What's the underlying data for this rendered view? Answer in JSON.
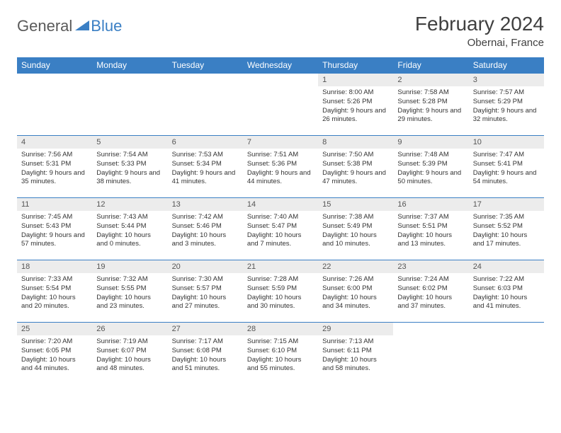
{
  "logo": {
    "general": "General",
    "blue": "Blue"
  },
  "title": "February 2024",
  "location": "Obernai, France",
  "colors": {
    "header_bg": "#3a7fc4",
    "header_text": "#ffffff",
    "daynum_bg": "#ececec",
    "border": "#3a7fc4",
    "body_text": "#333333"
  },
  "columns": [
    "Sunday",
    "Monday",
    "Tuesday",
    "Wednesday",
    "Thursday",
    "Friday",
    "Saturday"
  ],
  "weeks": [
    [
      null,
      null,
      null,
      null,
      {
        "n": "1",
        "sunrise": "8:00 AM",
        "sunset": "5:26 PM",
        "dl": "9 hours and 26 minutes."
      },
      {
        "n": "2",
        "sunrise": "7:58 AM",
        "sunset": "5:28 PM",
        "dl": "9 hours and 29 minutes."
      },
      {
        "n": "3",
        "sunrise": "7:57 AM",
        "sunset": "5:29 PM",
        "dl": "9 hours and 32 minutes."
      }
    ],
    [
      {
        "n": "4",
        "sunrise": "7:56 AM",
        "sunset": "5:31 PM",
        "dl": "9 hours and 35 minutes."
      },
      {
        "n": "5",
        "sunrise": "7:54 AM",
        "sunset": "5:33 PM",
        "dl": "9 hours and 38 minutes."
      },
      {
        "n": "6",
        "sunrise": "7:53 AM",
        "sunset": "5:34 PM",
        "dl": "9 hours and 41 minutes."
      },
      {
        "n": "7",
        "sunrise": "7:51 AM",
        "sunset": "5:36 PM",
        "dl": "9 hours and 44 minutes."
      },
      {
        "n": "8",
        "sunrise": "7:50 AM",
        "sunset": "5:38 PM",
        "dl": "9 hours and 47 minutes."
      },
      {
        "n": "9",
        "sunrise": "7:48 AM",
        "sunset": "5:39 PM",
        "dl": "9 hours and 50 minutes."
      },
      {
        "n": "10",
        "sunrise": "7:47 AM",
        "sunset": "5:41 PM",
        "dl": "9 hours and 54 minutes."
      }
    ],
    [
      {
        "n": "11",
        "sunrise": "7:45 AM",
        "sunset": "5:43 PM",
        "dl": "9 hours and 57 minutes."
      },
      {
        "n": "12",
        "sunrise": "7:43 AM",
        "sunset": "5:44 PM",
        "dl": "10 hours and 0 minutes."
      },
      {
        "n": "13",
        "sunrise": "7:42 AM",
        "sunset": "5:46 PM",
        "dl": "10 hours and 3 minutes."
      },
      {
        "n": "14",
        "sunrise": "7:40 AM",
        "sunset": "5:47 PM",
        "dl": "10 hours and 7 minutes."
      },
      {
        "n": "15",
        "sunrise": "7:38 AM",
        "sunset": "5:49 PM",
        "dl": "10 hours and 10 minutes."
      },
      {
        "n": "16",
        "sunrise": "7:37 AM",
        "sunset": "5:51 PM",
        "dl": "10 hours and 13 minutes."
      },
      {
        "n": "17",
        "sunrise": "7:35 AM",
        "sunset": "5:52 PM",
        "dl": "10 hours and 17 minutes."
      }
    ],
    [
      {
        "n": "18",
        "sunrise": "7:33 AM",
        "sunset": "5:54 PM",
        "dl": "10 hours and 20 minutes."
      },
      {
        "n": "19",
        "sunrise": "7:32 AM",
        "sunset": "5:55 PM",
        "dl": "10 hours and 23 minutes."
      },
      {
        "n": "20",
        "sunrise": "7:30 AM",
        "sunset": "5:57 PM",
        "dl": "10 hours and 27 minutes."
      },
      {
        "n": "21",
        "sunrise": "7:28 AM",
        "sunset": "5:59 PM",
        "dl": "10 hours and 30 minutes."
      },
      {
        "n": "22",
        "sunrise": "7:26 AM",
        "sunset": "6:00 PM",
        "dl": "10 hours and 34 minutes."
      },
      {
        "n": "23",
        "sunrise": "7:24 AM",
        "sunset": "6:02 PM",
        "dl": "10 hours and 37 minutes."
      },
      {
        "n": "24",
        "sunrise": "7:22 AM",
        "sunset": "6:03 PM",
        "dl": "10 hours and 41 minutes."
      }
    ],
    [
      {
        "n": "25",
        "sunrise": "7:20 AM",
        "sunset": "6:05 PM",
        "dl": "10 hours and 44 minutes."
      },
      {
        "n": "26",
        "sunrise": "7:19 AM",
        "sunset": "6:07 PM",
        "dl": "10 hours and 48 minutes."
      },
      {
        "n": "27",
        "sunrise": "7:17 AM",
        "sunset": "6:08 PM",
        "dl": "10 hours and 51 minutes."
      },
      {
        "n": "28",
        "sunrise": "7:15 AM",
        "sunset": "6:10 PM",
        "dl": "10 hours and 55 minutes."
      },
      {
        "n": "29",
        "sunrise": "7:13 AM",
        "sunset": "6:11 PM",
        "dl": "10 hours and 58 minutes."
      },
      null,
      null
    ]
  ]
}
